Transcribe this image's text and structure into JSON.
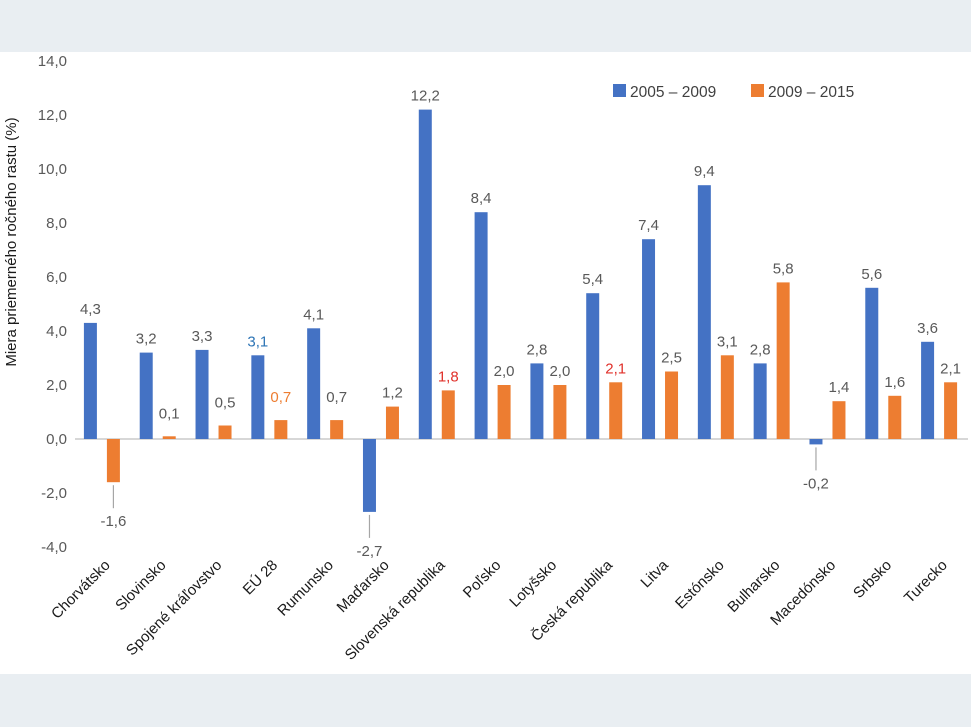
{
  "chart_data": {
    "type": "bar",
    "title": "",
    "xlabel": "",
    "ylabel": "Miera priemerného ročného rastu (%)",
    "ylim": [
      -4.0,
      14.0
    ],
    "yticks": [
      "-4,0",
      "-2,0",
      "0,0",
      "2,0",
      "4,0",
      "6,0",
      "8,0",
      "10,0",
      "12,0",
      "14,0"
    ],
    "legend_position": "top-right",
    "categories": [
      "Chorvátsko",
      "Slovinsko",
      "Spojené kráľovstvo",
      "EÚ 28",
      "Rumunsko",
      "Maďarsko",
      "Slovenská republika",
      "Poľsko",
      "Lotyšsko",
      "Česká republika",
      "Litva",
      "Estónsko",
      "Bulharsko",
      "Macedónsko",
      "Srbsko",
      "Turecko"
    ],
    "series": [
      {
        "name": "2005 – 2009",
        "color": "#4472c4",
        "values": [
          4.3,
          3.2,
          3.3,
          3.1,
          4.1,
          -2.7,
          12.2,
          8.4,
          2.8,
          5.4,
          7.4,
          9.4,
          2.8,
          -0.2,
          5.6,
          3.6
        ],
        "labels": [
          "4,3",
          "3,2",
          "3,3",
          "3,1",
          "4,1",
          "-2,7",
          "12,2",
          "8,4",
          "2,8",
          "5,4",
          "7,4",
          "9,4",
          "2,8",
          "-0,2",
          "5,6",
          "3,6"
        ],
        "label_colors": [
          "#595959",
          "#595959",
          "#595959",
          "#2e75b6",
          "#595959",
          "#595959",
          "#595959",
          "#595959",
          "#595959",
          "#595959",
          "#595959",
          "#595959",
          "#595959",
          "#595959",
          "#595959",
          "#595959"
        ]
      },
      {
        "name": "2009 – 2015",
        "color": "#ed7d31",
        "values": [
          -1.6,
          0.1,
          0.5,
          0.7,
          0.7,
          1.2,
          1.8,
          2.0,
          2.0,
          2.1,
          2.5,
          3.1,
          5.8,
          1.4,
          1.6,
          2.1
        ],
        "labels": [
          "-1,6",
          "0,1",
          "0,5",
          "0,7",
          "0,7",
          "1,2",
          "1,8",
          "2,0",
          "2,0",
          "2,1",
          "2,5",
          "3,1",
          "5,8",
          "1,4",
          "1,6",
          "2,1"
        ],
        "label_colors": [
          "#595959",
          "#595959",
          "#595959",
          "#ed7d31",
          "#595959",
          "#595959",
          "#e0302a",
          "#595959",
          "#595959",
          "#e0302a",
          "#595959",
          "#595959",
          "#595959",
          "#595959",
          "#595959",
          "#595959"
        ]
      }
    ],
    "colors": {
      "axis": "#bfbfbf",
      "tick_text": "#595959",
      "leader_line": "#a6a6a6"
    }
  }
}
